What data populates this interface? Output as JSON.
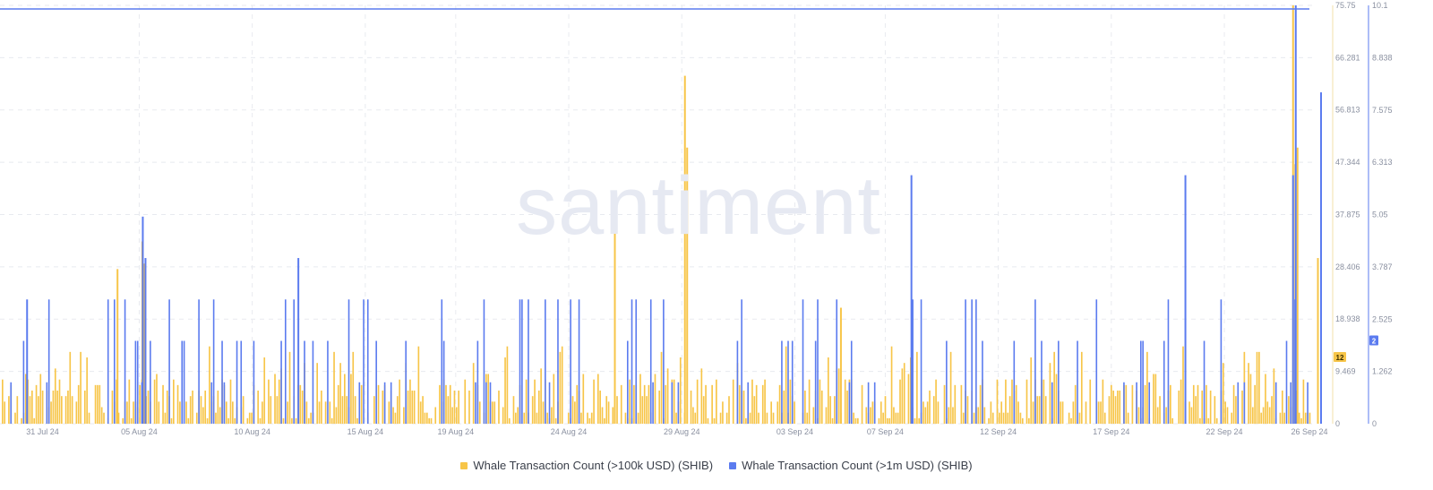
{
  "watermark": "santiment",
  "chart_data": {
    "type": "bar",
    "x_range": [
      "2024-07-30",
      "2024-09-26"
    ],
    "x_tick_labels": [
      "31 Jul 24",
      "05 Aug 24",
      "10 Aug 24",
      "15 Aug 24",
      "19 Aug 24",
      "24 Aug 24",
      "29 Aug 24",
      "03 Sep 24",
      "07 Sep 24",
      "12 Sep 24",
      "17 Sep 24",
      "22 Sep 24",
      "26 Sep 24"
    ],
    "y_left": {
      "ticks": [
        "75.75",
        "66.281",
        "56.813",
        "47.344",
        "37.875",
        "28.406",
        "18.938",
        "9.469",
        "0"
      ],
      "range": [
        0,
        75.75
      ]
    },
    "y_right": {
      "ticks": [
        "10.1",
        "8.838",
        "7.575",
        "6.313",
        "5.05",
        "3.787",
        "2.525",
        "1.262",
        "0"
      ],
      "range": [
        0,
        10.1
      ]
    },
    "last_value_badges": {
      "left": "12",
      "right": "2"
    },
    "colors": {
      "series_100k": "#f7c548",
      "series_1m": "#5b7bef",
      "grid": "#e8eaef",
      "axis_text": "#8a90a0",
      "right_axis": "#5b7bef"
    },
    "series": [
      {
        "name": "Whale Transaction Count (>100k USD) (SHIB)",
        "axis": "left",
        "spikes": [
          {
            "date": "2024-08-04",
            "value": 28
          },
          {
            "date": "2024-08-05",
            "value": 33
          },
          {
            "date": "2024-08-05",
            "value": 29
          },
          {
            "date": "2024-08-26",
            "value": 38
          },
          {
            "date": "2024-08-29",
            "value": 63
          },
          {
            "date": "2024-08-29",
            "value": 50
          },
          {
            "date": "2024-09-05",
            "value": 21
          },
          {
            "date": "2024-09-25",
            "value": 47
          },
          {
            "date": "2024-09-25",
            "value": 50
          },
          {
            "date": "2024-09-25",
            "value": 75.75
          },
          {
            "date": "2024-09-26",
            "value": 30
          }
        ],
        "baseline_max": 14,
        "last_value": 12
      },
      {
        "name": "Whale Transaction Count (>1m USD) (SHIB)",
        "axis": "right",
        "spikes": [
          {
            "date": "2024-07-31",
            "value": 3
          },
          {
            "date": "2024-08-05",
            "value": 5
          },
          {
            "date": "2024-08-05",
            "value": 4
          },
          {
            "date": "2024-08-12",
            "value": 4
          },
          {
            "date": "2024-09-08",
            "value": 6
          },
          {
            "date": "2024-09-20",
            "value": 6
          },
          {
            "date": "2024-09-25",
            "value": 6
          },
          {
            "date": "2024-09-25",
            "value": 10.1
          },
          {
            "date": "2024-09-26",
            "value": 8
          }
        ],
        "baseline_values": [
          1,
          2,
          3
        ],
        "last_value": 2
      }
    ],
    "legend_position": "bottom-center",
    "grid": true
  }
}
